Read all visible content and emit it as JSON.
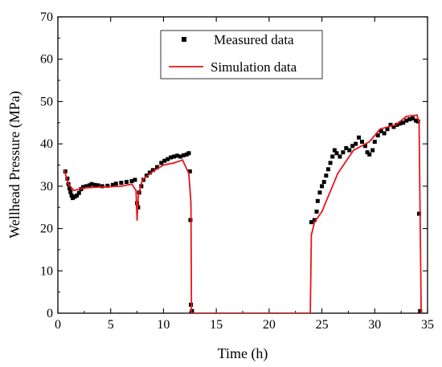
{
  "chart_data": {
    "type": "line",
    "title": "",
    "xlabel": "Time (h)",
    "ylabel": "Wellhead Pressure (MPa)",
    "xlim": [
      0,
      35
    ],
    "ylim": [
      0,
      70
    ],
    "xticks": [
      0,
      5,
      10,
      15,
      20,
      25,
      30,
      35
    ],
    "yticks": [
      0,
      10,
      20,
      30,
      40,
      50,
      60,
      70
    ],
    "legend_position": "top-center",
    "grid": false,
    "series": [
      {
        "name": "Measured data",
        "style": "scatter",
        "marker": "square",
        "color": "#000000",
        "points": [
          [
            0.7,
            33.5
          ],
          [
            0.9,
            31.8
          ],
          [
            1.0,
            30.5
          ],
          [
            1.1,
            29.5
          ],
          [
            1.2,
            28.6
          ],
          [
            1.3,
            27.8
          ],
          [
            1.4,
            27.2
          ],
          [
            1.6,
            27.5
          ],
          [
            1.8,
            27.8
          ],
          [
            2.0,
            28.4
          ],
          [
            2.2,
            29.3
          ],
          [
            2.4,
            29.8
          ],
          [
            2.7,
            30.0
          ],
          [
            3.0,
            30.2
          ],
          [
            3.2,
            30.5
          ],
          [
            3.5,
            30.3
          ],
          [
            3.8,
            30.2
          ],
          [
            4.2,
            30.0
          ],
          [
            4.7,
            30.1
          ],
          [
            5.2,
            30.3
          ],
          [
            5.5,
            30.6
          ],
          [
            6.0,
            30.8
          ],
          [
            6.5,
            31.0
          ],
          [
            7.0,
            31.2
          ],
          [
            7.3,
            31.5
          ],
          [
            7.5,
            26.0
          ],
          [
            7.6,
            25.0
          ],
          [
            7.7,
            28.5
          ],
          [
            7.9,
            30.0
          ],
          [
            8.1,
            31.5
          ],
          [
            8.4,
            32.5
          ],
          [
            8.7,
            33.2
          ],
          [
            9.0,
            33.8
          ],
          [
            9.4,
            34.5
          ],
          [
            9.8,
            35.5
          ],
          [
            10.1,
            36.0
          ],
          [
            10.4,
            36.4
          ],
          [
            10.7,
            36.8
          ],
          [
            11.0,
            37.0
          ],
          [
            11.3,
            37.2
          ],
          [
            11.6,
            37.0
          ],
          [
            11.9,
            37.3
          ],
          [
            12.2,
            37.5
          ],
          [
            12.4,
            37.8
          ],
          [
            12.5,
            33.5
          ],
          [
            12.55,
            22.0
          ],
          [
            12.6,
            2.0
          ],
          [
            12.7,
            0.5
          ],
          [
            24.0,
            21.5
          ],
          [
            24.3,
            22.0
          ],
          [
            24.5,
            24.0
          ],
          [
            24.6,
            26.5
          ],
          [
            24.8,
            28.5
          ],
          [
            25.0,
            30.0
          ],
          [
            25.2,
            31.0
          ],
          [
            25.4,
            32.5
          ],
          [
            25.6,
            34.0
          ],
          [
            25.8,
            35.5
          ],
          [
            26.0,
            37.0
          ],
          [
            26.2,
            38.5
          ],
          [
            26.4,
            37.8
          ],
          [
            26.7,
            37.0
          ],
          [
            27.0,
            38.0
          ],
          [
            27.3,
            39.0
          ],
          [
            27.6,
            38.5
          ],
          [
            27.9,
            39.5
          ],
          [
            28.2,
            40.0
          ],
          [
            28.5,
            41.5
          ],
          [
            28.8,
            40.5
          ],
          [
            29.1,
            39.5
          ],
          [
            29.3,
            38.0
          ],
          [
            29.5,
            37.5
          ],
          [
            29.8,
            38.5
          ],
          [
            30.0,
            40.5
          ],
          [
            30.3,
            42.0
          ],
          [
            30.6,
            43.0
          ],
          [
            30.9,
            42.5
          ],
          [
            31.2,
            43.5
          ],
          [
            31.5,
            44.5
          ],
          [
            31.8,
            44.0
          ],
          [
            32.1,
            44.5
          ],
          [
            32.4,
            44.8
          ],
          [
            32.7,
            45.0
          ],
          [
            33.0,
            45.5
          ],
          [
            33.3,
            45.8
          ],
          [
            33.6,
            46.0
          ],
          [
            33.9,
            45.5
          ],
          [
            34.1,
            45.3
          ],
          [
            34.2,
            23.5
          ],
          [
            34.3,
            0.5
          ]
        ]
      },
      {
        "name": "Simulation data",
        "style": "line",
        "color": "#e8141a",
        "points": [
          [
            0.6,
            33.8
          ],
          [
            1.0,
            30.5
          ],
          [
            1.5,
            29.0
          ],
          [
            2.5,
            29.6
          ],
          [
            4.0,
            29.8
          ],
          [
            6.0,
            30.0
          ],
          [
            7.0,
            30.5
          ],
          [
            7.4,
            29.0
          ],
          [
            7.5,
            22.0
          ],
          [
            7.6,
            27.5
          ],
          [
            8.0,
            31.5
          ],
          [
            9.0,
            33.5
          ],
          [
            10.0,
            35.0
          ],
          [
            11.0,
            35.5
          ],
          [
            11.8,
            36.2
          ],
          [
            12.4,
            33.0
          ],
          [
            12.6,
            26.0
          ],
          [
            12.65,
            0.0
          ],
          [
            23.9,
            0.0
          ],
          [
            24.0,
            18.5
          ],
          [
            24.3,
            21.5
          ],
          [
            25.0,
            24.0
          ],
          [
            26.5,
            33.0
          ],
          [
            28.0,
            38.5
          ],
          [
            29.5,
            40.5
          ],
          [
            30.5,
            43.5
          ],
          [
            32.0,
            44.5
          ],
          [
            33.0,
            46.5
          ],
          [
            34.0,
            46.8
          ],
          [
            34.2,
            45.0
          ],
          [
            34.4,
            0.0
          ]
        ]
      }
    ]
  }
}
